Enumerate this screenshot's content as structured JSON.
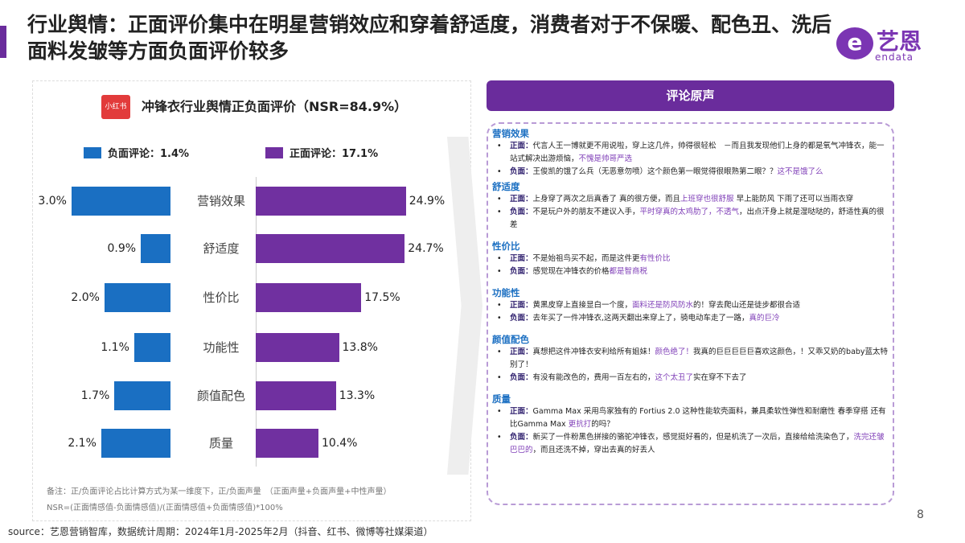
{
  "title": "行业舆情：正面评价集中在明星营销效应和穿着舒适度，消费者对于不保暖、配色丑、洗后面料发皱等方面负面评价较多",
  "logo": {
    "mark": "e",
    "cn": "艺恩",
    "en": "endata"
  },
  "chart_data": {
    "type": "bar",
    "title": "冲锋衣行业舆情正负面评价（NSR=84.9%）",
    "badge": "小红书",
    "categories": [
      "营销效果",
      "舒适度",
      "性价比",
      "功能性",
      "颜值配色",
      "质量"
    ],
    "series": [
      {
        "name": "负面评论：1.4%",
        "color": "#1a6fc2",
        "values": [
          3.0,
          0.9,
          2.0,
          1.1,
          1.7,
          2.1
        ]
      },
      {
        "name": "正面评论：17.1%",
        "color": "#7030a0",
        "values": [
          24.9,
          24.7,
          17.5,
          13.8,
          13.3,
          10.4
        ]
      }
    ],
    "value_format": "%",
    "legend": "top"
  },
  "note": [
    "备注：正/负面评论占比计算方式为某一维度下，正/负面声量　（正面声量+负面声量+中性声量）",
    "NSR=(正面情感值-负面情感值)/(正面情感值+负面情感值)*100%"
  ],
  "source": "source：艺恩营销智库，数据统计周期：2024年1月-2025年2月（抖音、红书、微博等社媒渠道）",
  "right": {
    "header": "评论原声",
    "sections": [
      {
        "title": "营销效果",
        "items": [
          {
            "tag": "正面：",
            "parts": [
              [
                "代言人王一博就更不用说啦，穿上这几件，帅得很轻松　－而且我发现他们上身的都是氧气冲锋衣，能一站式解决出游烦恼，",
                0
              ],
              [
                "不愧是帅哥严选",
                1
              ]
            ]
          },
          {
            "tag": "负面：",
            "parts": [
              [
                "王俊凯的饿了么兵（无恶意勿喷）这个颜色第一眼觉得很眼熟第二眼？？",
                0
              ],
              [
                "这不是饿了么",
                1
              ]
            ]
          }
        ]
      },
      {
        "title": "舒适度",
        "items": [
          {
            "tag": "正面：",
            "parts": [
              [
                "上身穿了两次之后真香了 真的很方便，而且",
                0
              ],
              [
                "上班穿也很舒服",
                1
              ],
              [
                " 早上能防风 下雨了还可以当雨衣穿",
                0
              ]
            ]
          },
          {
            "tag": "负面：",
            "parts": [
              [
                "不是玩户外的朋友不建议入手，",
                0
              ],
              [
                "平时穿真的太鸡肋了，不透气",
                1
              ],
              [
                "，出点汗身上就是湿哒哒的，舒适性真的很差",
                0
              ]
            ]
          }
        ]
      },
      {
        "title": "性价比",
        "items": [
          {
            "tag": "正面：",
            "parts": [
              [
                "不是始祖鸟买不起，而是这件更",
                0
              ],
              [
                "有性价比",
                1
              ]
            ]
          },
          {
            "tag": "负面：",
            "parts": [
              [
                "感觉现在冲锋衣的价格",
                0
              ],
              [
                "都是智商税",
                1
              ]
            ]
          }
        ]
      },
      {
        "title": "功能性",
        "items": [
          {
            "tag": "正面：",
            "parts": [
              [
                "黄黑皮穿上直接显白一个度，",
                0
              ],
              [
                "面料还是防风防水",
                1
              ],
              [
                "的！穿去爬山还是徒步都很合适",
                0
              ]
            ]
          },
          {
            "tag": "负面：",
            "parts": [
              [
                "去年买了一件冲锋衣,这两天翻出来穿上了，骑电动车走了一路，",
                0
              ],
              [
                "真的巨冷",
                1
              ]
            ]
          }
        ]
      },
      {
        "title": "颜值配色",
        "items": [
          {
            "tag": "正面：",
            "parts": [
              [
                "真想把这件冲锋衣安利给所有姐妹！",
                0
              ],
              [
                "颜色绝了！",
                1
              ],
              [
                "我真的巨巨巨巨巨喜欢这颜色，！又乖又奶的baby蓝太特别了！",
                0
              ]
            ]
          },
          {
            "tag": "负面：",
            "parts": [
              [
                "有没有能改色的，费用一百左右的，",
                0
              ],
              [
                "这个太丑了",
                1
              ],
              [
                "实在穿不下去了",
                0
              ]
            ]
          }
        ]
      },
      {
        "title": "质量",
        "items": [
          {
            "tag": "正面：",
            "parts": [
              [
                "Gamma Max 采用鸟家独有的 Fortius 2.0 这种性能软壳面料，兼具柔软性弹性和耐磨性 春季穿搭 还有比Gamma Max ",
                0
              ],
              [
                "更抗打",
                1
              ],
              [
                "的吗？",
                0
              ]
            ]
          },
          {
            "tag": "负面：",
            "parts": [
              [
                "新买了一件粉黑色拼接的骆驼冲锋衣，感觉挺好看的，但是机洗了一次后，直接给给洗染色了，",
                0
              ],
              [
                "洗完还皱巴巴的",
                1
              ],
              [
                "，而且还洗不掉，穿出去真的好丢人",
                0
              ]
            ]
          }
        ]
      }
    ]
  },
  "page_number": "8"
}
